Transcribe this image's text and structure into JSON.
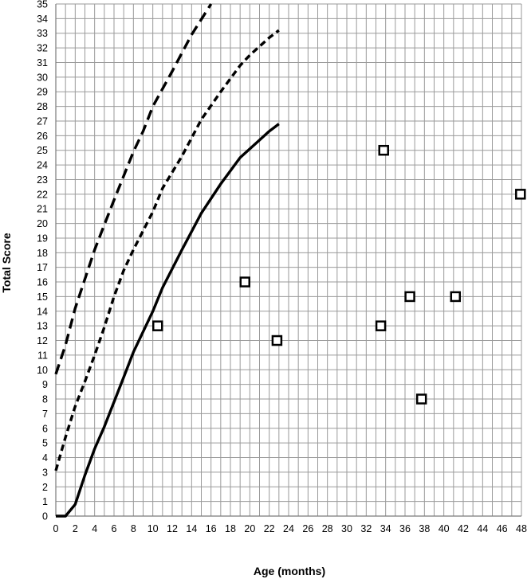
{
  "chart_data": {
    "type": "scatter",
    "title": "",
    "xlabel": "Age (months)",
    "ylabel": "Total Score",
    "xlim": [
      0,
      48
    ],
    "ylim": [
      0,
      35
    ],
    "x_ticks": [
      0,
      2,
      4,
      6,
      8,
      10,
      12,
      14,
      16,
      18,
      20,
      22,
      24,
      26,
      28,
      30,
      32,
      34,
      36,
      38,
      40,
      42,
      44,
      46,
      48
    ],
    "y_ticks": [
      0,
      1,
      2,
      3,
      4,
      5,
      6,
      7,
      8,
      9,
      10,
      11,
      12,
      13,
      14,
      15,
      16,
      17,
      18,
      19,
      20,
      21,
      22,
      23,
      24,
      25,
      26,
      27,
      28,
      29,
      30,
      31,
      32,
      33,
      34,
      35
    ],
    "grid": true,
    "legend": "none",
    "series": [
      {
        "style": "solid",
        "color": "#000000",
        "points": [
          [
            0,
            0
          ],
          [
            1,
            0
          ],
          [
            2,
            0.8
          ],
          [
            3,
            2.8
          ],
          [
            4,
            4.6
          ],
          [
            5,
            6.1
          ],
          [
            6,
            7.8
          ],
          [
            7,
            9.5
          ],
          [
            8,
            11.2
          ],
          [
            10,
            14.0
          ],
          [
            11,
            15.6
          ],
          [
            13,
            18.2
          ],
          [
            15,
            20.7
          ],
          [
            17,
            22.7
          ],
          [
            19,
            24.5
          ],
          [
            21,
            25.7
          ],
          [
            22,
            26.3
          ],
          [
            23,
            26.8
          ]
        ]
      },
      {
        "style": "short-dash",
        "color": "#000000",
        "points": [
          [
            0,
            3.1
          ],
          [
            1,
            5.4
          ],
          [
            2,
            7.5
          ],
          [
            3,
            9.2
          ],
          [
            4,
            11.0
          ],
          [
            5,
            12.9
          ],
          [
            6,
            15.0
          ],
          [
            7,
            16.8
          ],
          [
            8,
            18.2
          ],
          [
            10,
            20.8
          ],
          [
            11,
            22.4
          ],
          [
            13,
            24.6
          ],
          [
            15,
            27.1
          ],
          [
            17,
            29.0
          ],
          [
            19,
            30.8
          ],
          [
            20,
            31.5
          ],
          [
            22,
            32.7
          ],
          [
            23,
            33.2
          ]
        ]
      },
      {
        "style": "long-dash",
        "color": "#000000",
        "points": [
          [
            0,
            9.7
          ],
          [
            1,
            11.7
          ],
          [
            2,
            14.2
          ],
          [
            3,
            16.2
          ],
          [
            4,
            18.2
          ],
          [
            5,
            19.9
          ],
          [
            6,
            21.6
          ],
          [
            8,
            24.9
          ],
          [
            9,
            26.3
          ],
          [
            10,
            28.0
          ],
          [
            12,
            30.4
          ],
          [
            14,
            32.9
          ],
          [
            16,
            35.0
          ]
        ]
      }
    ],
    "markers": {
      "shape": "square",
      "color": "#000000",
      "points": [
        [
          10.5,
          13
        ],
        [
          19.5,
          16
        ],
        [
          22.8,
          12
        ],
        [
          33.5,
          13
        ],
        [
          33.8,
          25
        ],
        [
          36.5,
          15
        ],
        [
          37.7,
          8
        ],
        [
          41.2,
          15
        ],
        [
          47.9,
          22
        ]
      ]
    }
  }
}
